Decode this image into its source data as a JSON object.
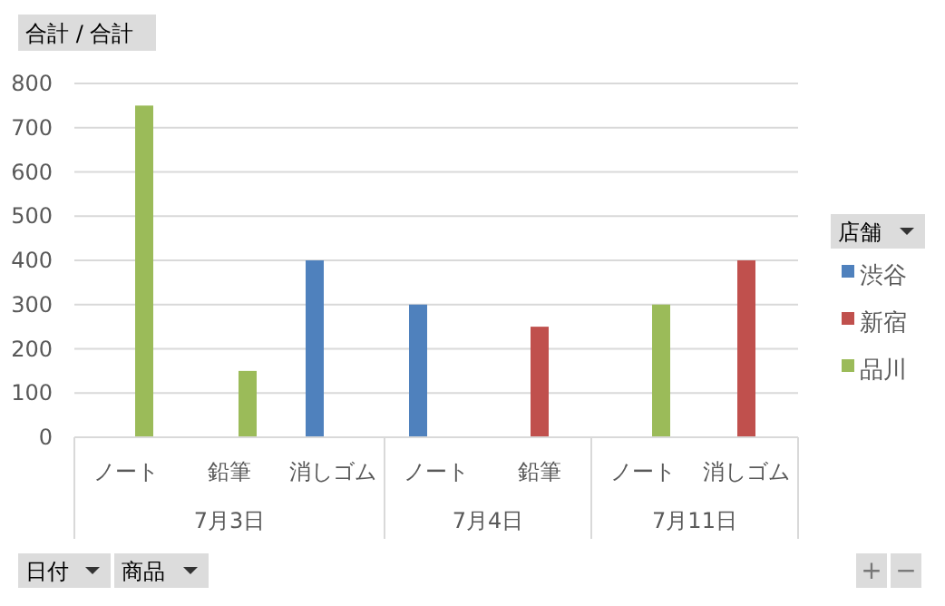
{
  "chart_data": {
    "type": "bar",
    "title": "合計 / 合計",
    "legend_title": "店舗",
    "categories": [
      "ノート",
      "鉛筆",
      "消しゴム",
      "ノート",
      "鉛筆",
      "ノート",
      "消しゴム"
    ],
    "series": [
      {
        "name": "渋谷",
        "color": "#4f81bd",
        "values": [
          null,
          null,
          400,
          300,
          null,
          null,
          null
        ]
      },
      {
        "name": "新宿",
        "color": "#c0504d",
        "values": [
          null,
          null,
          null,
          null,
          250,
          null,
          400
        ]
      },
      {
        "name": "品川",
        "color": "#9bbb59",
        "values": [
          750,
          150,
          null,
          null,
          null,
          300,
          null
        ]
      }
    ],
    "ylim": [
      0,
      800
    ],
    "yticks": [
      0,
      100,
      200,
      300,
      400,
      500,
      600,
      700,
      800
    ],
    "grid": "y",
    "legend": "right",
    "annotations": [
      "7月3日",
      "7月4日",
      "7月11日",
      "日付",
      "商品",
      "+",
      "−"
    ]
  }
}
